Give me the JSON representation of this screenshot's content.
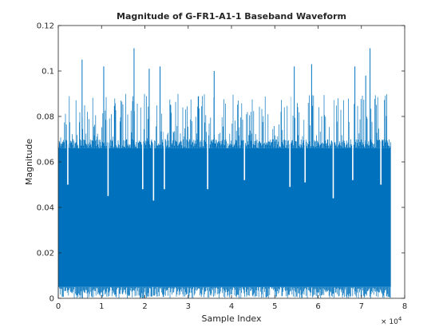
{
  "chart_data": {
    "type": "area",
    "title": "Magnitude of G-FR1-A1-1 Baseband Waveform",
    "xlabel": "Sample Index",
    "ylabel": "Magnitude",
    "xlim": [
      0,
      80000
    ],
    "ylim": [
      0,
      0.12
    ],
    "x_ticks": [
      0,
      10000,
      20000,
      30000,
      40000,
      50000,
      60000,
      70000,
      80000
    ],
    "x_tick_labels": [
      "0",
      "1",
      "2",
      "3",
      "4",
      "5",
      "6",
      "7",
      "8"
    ],
    "x_exponent_base": "× 10",
    "x_exponent_power": "4",
    "y_ticks": [
      0,
      0.02,
      0.04,
      0.06,
      0.08,
      0.1,
      0.12
    ],
    "y_tick_labels": [
      "0",
      "0.02",
      "0.04",
      "0.06",
      "0.08",
      "0.1",
      "0.12"
    ],
    "grid": false,
    "series": [
      {
        "color": "#0072bd",
        "x_range": [
          1,
          76800
        ],
        "approx_mean_magnitude": 0.04,
        "dense_band": [
          0.005,
          0.066
        ],
        "typical_peak_range": [
          0.07,
          0.09
        ],
        "notable_peaks": [
          {
            "x": 5500,
            "y": 0.105
          },
          {
            "x": 10500,
            "y": 0.102
          },
          {
            "x": 17500,
            "y": 0.11
          },
          {
            "x": 21000,
            "y": 0.101
          },
          {
            "x": 23500,
            "y": 0.102
          },
          {
            "x": 36000,
            "y": 0.1
          },
          {
            "x": 54500,
            "y": 0.102
          },
          {
            "x": 58500,
            "y": 0.103
          },
          {
            "x": 68500,
            "y": 0.102
          },
          {
            "x": 71000,
            "y": 0.098
          },
          {
            "x": 72000,
            "y": 0.11
          }
        ],
        "notable_dips": [
          {
            "x": 2200,
            "y": 0.05
          },
          {
            "x": 11500,
            "y": 0.045
          },
          {
            "x": 19500,
            "y": 0.048
          },
          {
            "x": 22000,
            "y": 0.043
          },
          {
            "x": 24500,
            "y": 0.048
          },
          {
            "x": 34500,
            "y": 0.048
          },
          {
            "x": 43000,
            "y": 0.052
          },
          {
            "x": 53500,
            "y": 0.049
          },
          {
            "x": 57000,
            "y": 0.051
          },
          {
            "x": 63500,
            "y": 0.044
          },
          {
            "x": 68000,
            "y": 0.052
          },
          {
            "x": 74500,
            "y": 0.05
          }
        ]
      }
    ]
  },
  "colors": {
    "series": "#0072bd",
    "axes": "#262626",
    "background": "#ffffff"
  }
}
